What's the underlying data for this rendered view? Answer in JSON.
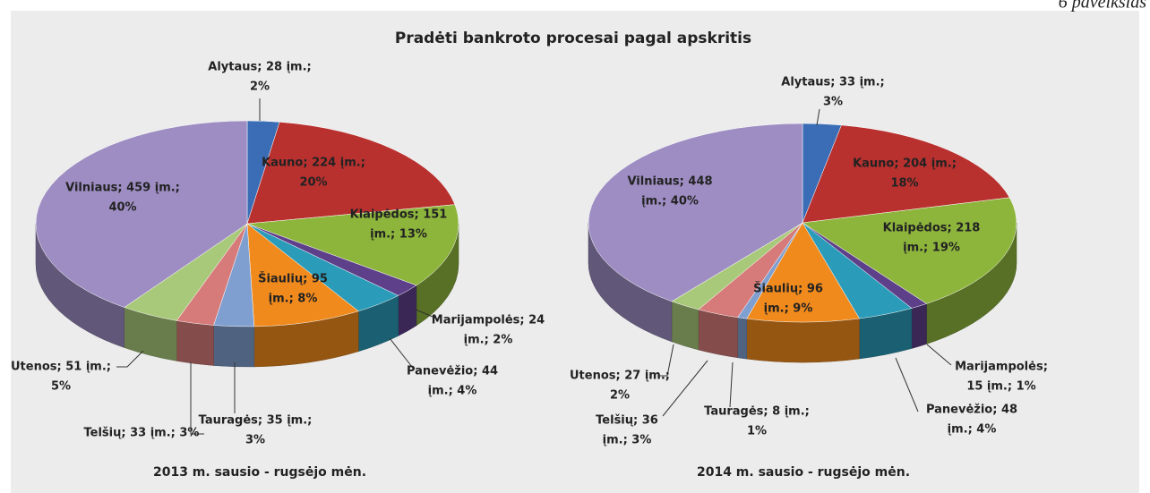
{
  "caption": "6 paveikslas",
  "title": "Pradėti bankroto procesai pagal apskritis",
  "chart_data": [
    {
      "type": "pie",
      "subtitle": "2013 m. sausio - rugsėjo mėn.",
      "categories": [
        "Alytaus",
        "Kauno",
        "Klaipėdos",
        "Marijampolės",
        "Panevėžio",
        "Šiaulių",
        "Tauragės",
        "Telšių",
        "Utenos",
        "Vilniaus"
      ],
      "values": [
        28,
        224,
        151,
        24,
        44,
        95,
        35,
        33,
        51,
        459
      ],
      "percentages": [
        2,
        20,
        13,
        2,
        4,
        8,
        3,
        3,
        5,
        40
      ],
      "data_labels": [
        [
          "Alytaus; 28 įm.;",
          "2%"
        ],
        [
          "Kauno; 224 įm.;",
          "20%"
        ],
        [
          "Klaipėdos; 151",
          "įm.; 13%"
        ],
        [
          "Marijampolės; 24",
          "įm.; 2%"
        ],
        [
          "Panevėžio; 44",
          "įm.; 4%"
        ],
        [
          "Šiaulių; 95",
          "įm.; 8%"
        ],
        [
          "Tauragės; 35 įm.;",
          "3%"
        ],
        [
          "Telšių; 33 įm.; 3%"
        ],
        [
          "Utenos; 51 įm.;",
          "5%"
        ],
        [
          "Vilniaus; 459 įm.;",
          "40%"
        ]
      ],
      "colors": [
        "#3a6db5",
        "#b8312f",
        "#8db53c",
        "#5e3f8a",
        "#2a9bb8",
        "#f08a1d",
        "#7f9fd0",
        "#d67a7a",
        "#a9c97a",
        "#9d8dc2"
      ]
    },
    {
      "type": "pie",
      "subtitle": "2014 m. sausio - rugsėjo mėn.",
      "categories": [
        "Alytaus",
        "Kauno",
        "Klaipėdos",
        "Marijampolės",
        "Panevėžio",
        "Šiaulių",
        "Tauragės",
        "Telšių",
        "Utenos",
        "Vilniaus"
      ],
      "values": [
        33,
        204,
        218,
        15,
        48,
        96,
        8,
        36,
        27,
        448
      ],
      "percentages": [
        3,
        18,
        19,
        1,
        4,
        9,
        1,
        3,
        2,
        40
      ],
      "data_labels": [
        [
          "Alytaus; 33 įm.;",
          "3%"
        ],
        [
          "Kauno; 204 įm.;",
          "18%"
        ],
        [
          "Klaipėdos; 218",
          "įm.; 19%"
        ],
        [
          "Marijampolės;",
          "15 įm.; 1%"
        ],
        [
          "Panevėžio; 48",
          "įm.; 4%"
        ],
        [
          "Šiaulių; 96",
          "įm.; 9%"
        ],
        [
          "Tauragės; 8 įm.;",
          "1%"
        ],
        [
          "Telšių; 36",
          "įm.; 3%"
        ],
        [
          "Utenos; 27 įm.;",
          "2%"
        ],
        [
          "Vilniaus; 448",
          "įm.; 40%"
        ]
      ],
      "colors": [
        "#3a6db5",
        "#b8312f",
        "#8db53c",
        "#5e3f8a",
        "#2a9bb8",
        "#f08a1d",
        "#7f9fd0",
        "#d67a7a",
        "#a9c97a",
        "#9d8dc2"
      ]
    }
  ]
}
